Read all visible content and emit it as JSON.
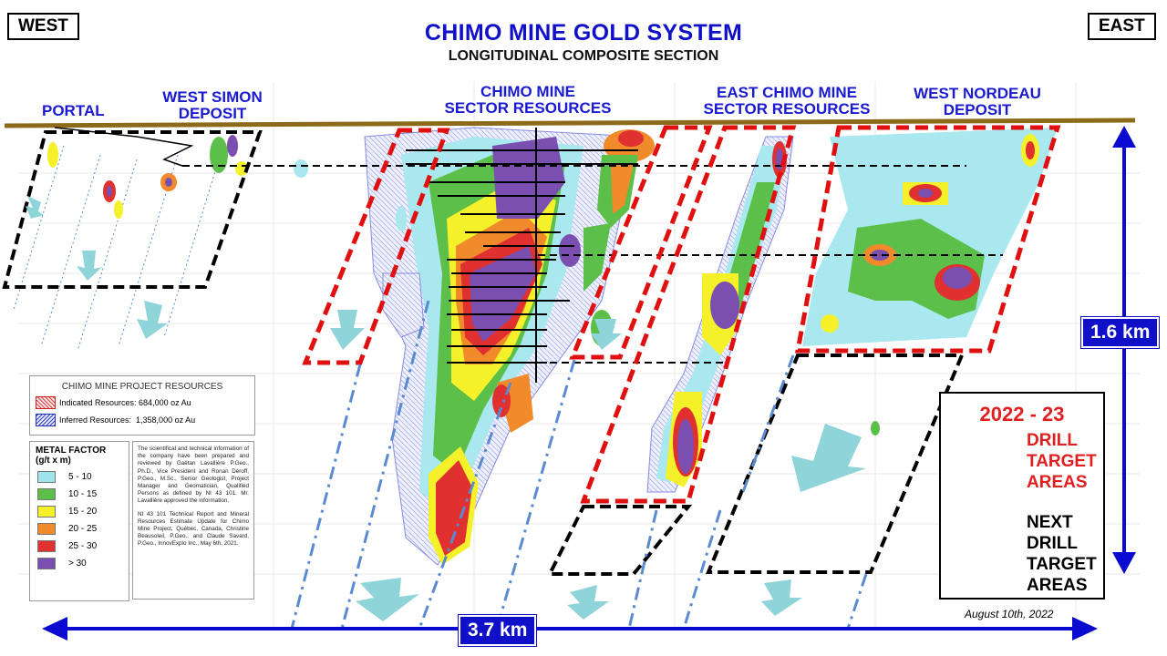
{
  "header": {
    "west": "WEST",
    "east": "EAST",
    "title": "CHIMO MINE GOLD SYSTEM",
    "subtitle": "LONGITUDINAL COMPOSITE SECTION"
  },
  "sectors": {
    "portal": "PORTAL",
    "west_simon_1": "WEST SIMON",
    "west_simon_2": "DEPOSIT",
    "chimo_1": "CHIMO MINE",
    "chimo_2": "SECTOR RESOURCES",
    "east_chimo_1": "EAST CHIMO MINE",
    "east_chimo_2": "SECTOR RESOURCES",
    "west_nordeau_1": "WEST NORDEAU",
    "west_nordeau_2": "DEPOSIT"
  },
  "resources": {
    "title": "CHIMO MINE PROJECT RESOURCES",
    "indicated": "Indicated Resources: 684,000 oz Au",
    "inferred": "Inferred Resources:  1,358,000 oz Au"
  },
  "metal_factor": {
    "title_1": "METAL FACTOR",
    "title_2": "(g/t x m)",
    "ranges": [
      {
        "label": "5 - 10",
        "color": "#9fe4ea"
      },
      {
        "label": "10 - 15",
        "color": "#5cbf4a"
      },
      {
        "label": "15 - 20",
        "color": "#f4f02a"
      },
      {
        "label": "20 - 25",
        "color": "#f08a2a"
      },
      {
        "label": "25 - 30",
        "color": "#e03030"
      },
      {
        "label": "> 30",
        "color": "#7a4fb0"
      }
    ]
  },
  "notes": {
    "p1": "The scientifical and technical information of the company have been prepared and reviewed by Gaëtan Lavallière P.Geo., Ph.D., Vice President and Ronan Déroff, P.Geo., M.Sc., Senior Geologist, Project Manager and Geomatician, Qualified Persons as defined by NI 43 101. Mr. Lavallière approved the information.",
    "p2": "NI 43 101 Technical Report and Mineral Resources Estimate Update for Chimo Mine Project, Québec, Canada, Christine Beausoleil, P.Geo., and Claude Savard, P.Geo., InnovExplo Inc., May 6th, 2021."
  },
  "targets": {
    "year": "2022 - 23",
    "drill": [
      "DRILL",
      "TARGET",
      "AREAS"
    ],
    "next": [
      "NEXT",
      "DRILL",
      "TARGET",
      "AREAS"
    ]
  },
  "scale": {
    "depth": "1.6 km",
    "length": "3.7 km"
  },
  "date": "August 10th, 2022",
  "colors": {
    "title_blue": "#1010c8",
    "sector_blue": "#1a1ad0",
    "red_target": "#e01010",
    "surface": "#8b6a1a",
    "arrow_cyan": "#8fd4d8"
  }
}
